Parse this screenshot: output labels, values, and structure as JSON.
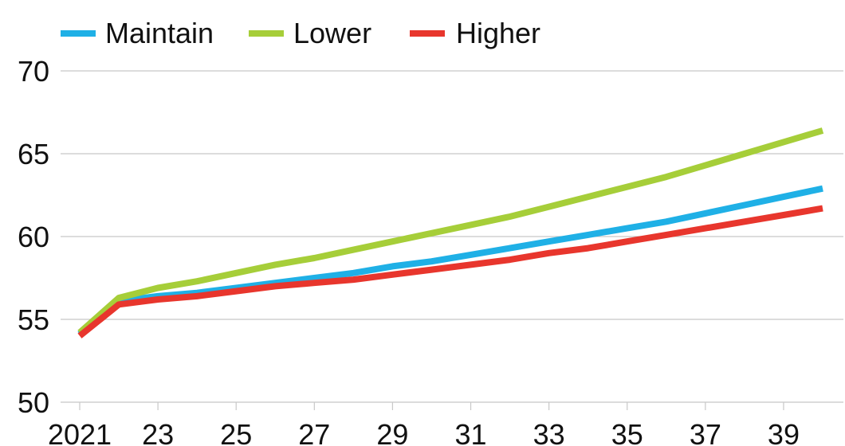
{
  "chart_data": {
    "type": "line",
    "title": "",
    "xlabel": "",
    "ylabel": "",
    "x": [
      2021,
      2022,
      2023,
      2024,
      2025,
      2026,
      2027,
      2028,
      2029,
      2030,
      2031,
      2032,
      2033,
      2034,
      2035,
      2036,
      2037,
      2038,
      2039,
      2040
    ],
    "x_tick_labels": [
      "2021",
      "23",
      "25",
      "27",
      "29",
      "31",
      "33",
      "35",
      "37",
      "39"
    ],
    "y_ticks": [
      50,
      55,
      60,
      65,
      70
    ],
    "y_tick_labels": [
      "50",
      "55",
      "60",
      "65",
      "70"
    ],
    "ylim": [
      50,
      70
    ],
    "xlim": [
      2021,
      2040
    ],
    "grid": true,
    "legend_placement": "top-left",
    "series": [
      {
        "name": "Maintain",
        "color": "#1fb0e6",
        "values": [
          54.1,
          56.1,
          56.4,
          56.6,
          56.9,
          57.2,
          57.5,
          57.8,
          58.2,
          58.5,
          58.9,
          59.3,
          59.7,
          60.1,
          60.5,
          60.9,
          61.4,
          61.9,
          62.4,
          62.9
        ]
      },
      {
        "name": "Lower",
        "color": "#a6ce39",
        "values": [
          54.2,
          56.3,
          56.9,
          57.3,
          57.8,
          58.3,
          58.7,
          59.2,
          59.7,
          60.2,
          60.7,
          61.2,
          61.8,
          62.4,
          63.0,
          63.6,
          64.3,
          65.0,
          65.7,
          66.4
        ]
      },
      {
        "name": "Higher",
        "color": "#e8362d",
        "values": [
          54.0,
          55.9,
          56.2,
          56.4,
          56.7,
          57.0,
          57.2,
          57.4,
          57.7,
          58.0,
          58.3,
          58.6,
          59.0,
          59.3,
          59.7,
          60.1,
          60.5,
          60.9,
          61.3,
          61.7
        ]
      }
    ]
  }
}
